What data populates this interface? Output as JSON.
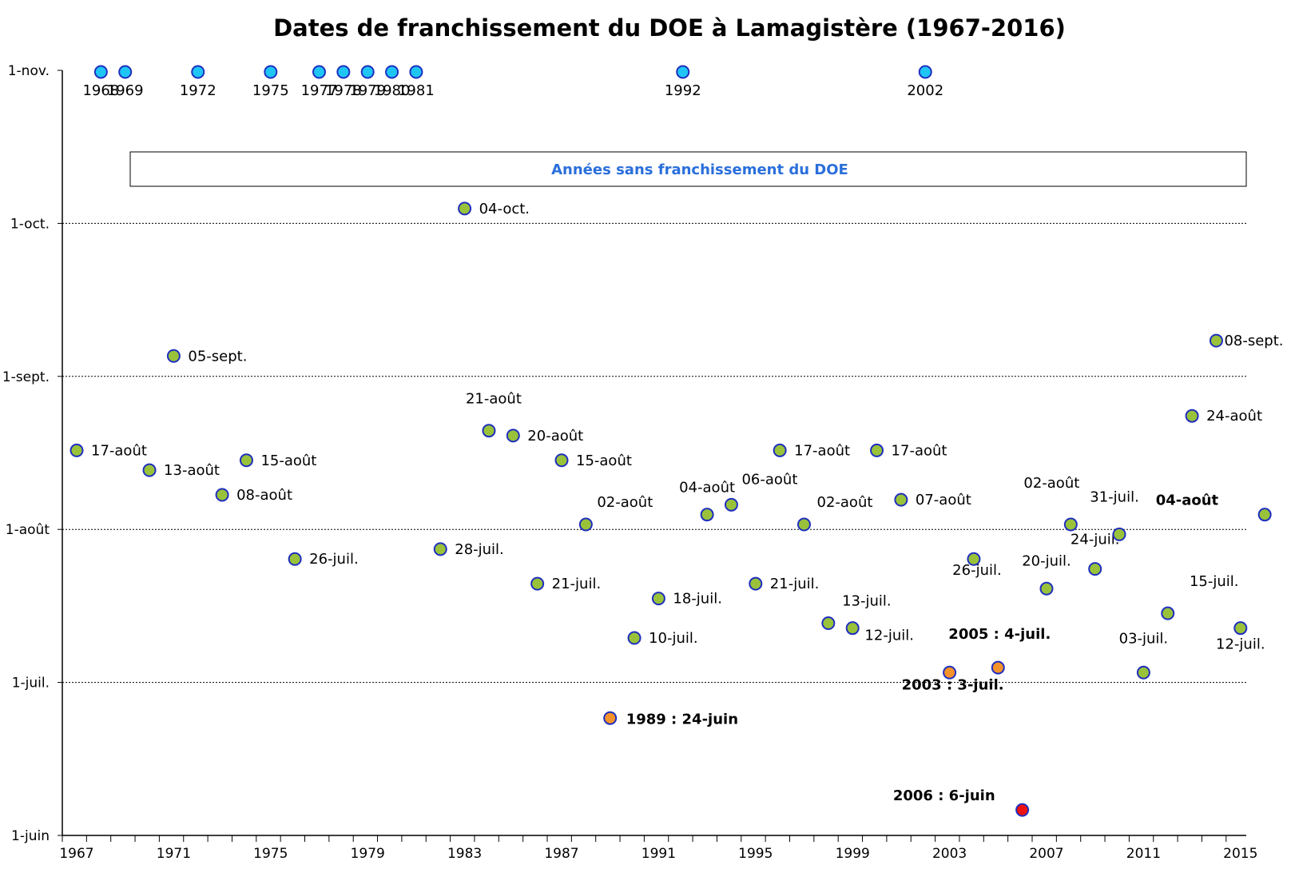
{
  "chart_data": {
    "type": "scatter",
    "title": "Dates de franchissement du DOE à Lamagistère (1967-2016)",
    "xlabel": "",
    "ylabel": "",
    "xlim": [
      1967,
      2017
    ],
    "ylim": [
      "1-juin",
      "1-nov."
    ],
    "x_ticks": [
      "1967",
      "1971",
      "1975",
      "1979",
      "1983",
      "1987",
      "1991",
      "1995",
      "1999",
      "2003",
      "2007",
      "2011",
      "2015"
    ],
    "y_ticks": [
      "1-juin",
      "1-juil.",
      "1-août",
      "1-sept.",
      "1-oct.",
      "1-nov."
    ],
    "grid": "horizontal dotted",
    "no_crossing_box_label": "Années sans franchissement du DOE",
    "no_crossing_years": [
      {
        "year": 1968,
        "label": "1968"
      },
      {
        "year": 1969,
        "label": "1969"
      },
      {
        "year": 1972,
        "label": "1972"
      },
      {
        "year": 1975,
        "label": "1975"
      },
      {
        "year": 1977,
        "label": "1977"
      },
      {
        "year": 1978,
        "label": "1978"
      },
      {
        "year": 1979,
        "label": "1979"
      },
      {
        "year": 1980,
        "label": "1980"
      },
      {
        "year": 1981,
        "label": "1981"
      },
      {
        "year": 1992,
        "label": "1992"
      },
      {
        "year": 2002,
        "label": "2002"
      }
    ],
    "points": [
      {
        "year": 1967,
        "date": "17-août",
        "label": "17-août",
        "kind": "normal"
      },
      {
        "year": 1970,
        "date": "13-août",
        "label": "13-août",
        "kind": "normal"
      },
      {
        "year": 1971,
        "date": "05-sept.",
        "label": "05-sept.",
        "kind": "normal"
      },
      {
        "year": 1973,
        "date": "08-août",
        "label": "08-août",
        "kind": "normal"
      },
      {
        "year": 1974,
        "date": "15-août",
        "label": "15-août",
        "kind": "normal"
      },
      {
        "year": 1976,
        "date": "26-juil.",
        "label": "26-juil.",
        "kind": "normal"
      },
      {
        "year": 1982,
        "date": "28-juil.",
        "label": "28-juil.",
        "kind": "normal"
      },
      {
        "year": 1983,
        "date": "04-oct.",
        "label": "04-oct.",
        "kind": "normal"
      },
      {
        "year": 1984,
        "date": "21-août",
        "label": "21-août",
        "kind": "normal"
      },
      {
        "year": 1985,
        "date": "20-août",
        "label": "20-août",
        "kind": "normal"
      },
      {
        "year": 1986,
        "date": "21-juil.",
        "label": "21-juil.",
        "kind": "normal"
      },
      {
        "year": 1987,
        "date": "15-août",
        "label": "15-août",
        "kind": "normal"
      },
      {
        "year": 1988,
        "date": "02-août",
        "label": "02-août",
        "kind": "normal"
      },
      {
        "year": 1989,
        "date": "24-juin",
        "label": "1989 : 24-juin",
        "kind": "early"
      },
      {
        "year": 1990,
        "date": "10-juil.",
        "label": "10-juil.",
        "kind": "normal"
      },
      {
        "year": 1991,
        "date": "18-juil.",
        "label": "18-juil.",
        "kind": "normal"
      },
      {
        "year": 1993,
        "date": "04-août",
        "label": "04-août",
        "kind": "normal"
      },
      {
        "year": 1994,
        "date": "06-août",
        "label": "06-août",
        "kind": "normal"
      },
      {
        "year": 1995,
        "date": "21-juil.",
        "label": "21-juil.",
        "kind": "normal"
      },
      {
        "year": 1996,
        "date": "17-août",
        "label": "17-août",
        "kind": "normal"
      },
      {
        "year": 1997,
        "date": "02-août",
        "label": "02-août",
        "kind": "normal"
      },
      {
        "year": 1998,
        "date": "13-juil.",
        "label": "13-juil.",
        "kind": "normal"
      },
      {
        "year": 1999,
        "date": "12-juil.",
        "label": "12-juil.",
        "kind": "normal"
      },
      {
        "year": 2000,
        "date": "17-août",
        "label": "17-août",
        "kind": "normal"
      },
      {
        "year": 2001,
        "date": "07-août",
        "label": "07-août",
        "kind": "normal"
      },
      {
        "year": 2003,
        "date": "03-juil.",
        "label": "2003 : 3-juil.",
        "kind": "early"
      },
      {
        "year": 2004,
        "date": "26-juil.",
        "label": "26-juil.",
        "kind": "normal"
      },
      {
        "year": 2005,
        "date": "04-juil.",
        "label": "2005 : 4-juil.",
        "kind": "early"
      },
      {
        "year": 2006,
        "date": "06-juin",
        "label": "2006 : 6-juin",
        "kind": "record"
      },
      {
        "year": 2007,
        "date": "20-juil.",
        "label": "20-juil.",
        "kind": "normal"
      },
      {
        "year": 2008,
        "date": "02-août",
        "label": "02-août",
        "kind": "normal"
      },
      {
        "year": 2009,
        "date": "24-juil.",
        "label": "24-juil.",
        "kind": "normal"
      },
      {
        "year": 2010,
        "date": "31-juil.",
        "label": "31-juil.",
        "kind": "normal"
      },
      {
        "year": 2011,
        "date": "03-juil.",
        "label": "03-juil.",
        "kind": "normal"
      },
      {
        "year": 2012,
        "date": "15-juil.",
        "label": "15-juil.",
        "kind": "normal"
      },
      {
        "year": 2013,
        "date": "24-août",
        "label": "24-août",
        "kind": "normal"
      },
      {
        "year": 2014,
        "date": "08-sept.",
        "label": "08-sept.",
        "kind": "normal"
      },
      {
        "year": 2015,
        "date": "12-juil.",
        "label": "12-juil.",
        "kind": "normal"
      },
      {
        "year": 2016,
        "date": "04-août",
        "label": "04-août",
        "kind": "latest"
      }
    ],
    "colors": {
      "normal_fill": "#99c23a",
      "early_fill": "#f5922b",
      "record_fill": "#ee1111",
      "no_crossing_fill": "#1fc6f5",
      "marker_stroke": "#1f2fbf",
      "early_text": "#f59a1d",
      "record_text": "#ee1111",
      "box_text": "#2a6fdb"
    }
  }
}
